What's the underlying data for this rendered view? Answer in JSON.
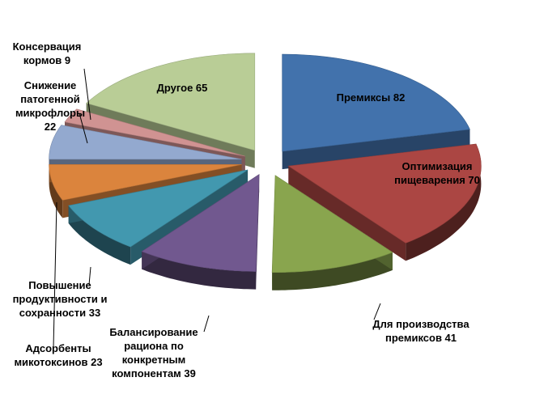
{
  "chart_data": {
    "type": "pie",
    "style": "exploded 3D pie",
    "title": "",
    "slices": [
      {
        "label_lines": [
          "Премиксы 82"
        ],
        "category": "Премиксы",
        "value": 82,
        "color": "#4272ac",
        "label_inside": true
      },
      {
        "label_lines": [
          "Оптимизация",
          "пищеварения 70"
        ],
        "category": "Оптимизация пищеварения",
        "value": 70,
        "color": "#ab4643",
        "label_inside": true
      },
      {
        "label_lines": [
          "Для производства",
          "премиксов  41"
        ],
        "category": "Для производства премиксов",
        "value": 41,
        "color": "#89a54e",
        "label_inside": false
      },
      {
        "label_lines": [
          "Балансирование",
          "рациона по",
          "конкретным",
          "компонентам 39"
        ],
        "category": "Балансирование рациона по конкретным компонентам",
        "value": 39,
        "color": "#71588f",
        "label_inside": false
      },
      {
        "label_lines": [
          "Повышение",
          "продуктивности и",
          "сохранности 33"
        ],
        "category": "Повышение продуктивности и сохранности",
        "value": 33,
        "color": "#4298af",
        "label_inside": false
      },
      {
        "label_lines": [
          "Адсорбенты",
          "микотоксинов 23"
        ],
        "category": "Адсорбенты микотоксинов",
        "value": 23,
        "color": "#db843d",
        "label_inside": false
      },
      {
        "label_lines": [
          "Снижение",
          "патогенной",
          "микрофлоры",
          "22"
        ],
        "category": "Снижение патогенной микрофлоры",
        "value": 22,
        "color": "#93a9cf",
        "label_inside": false
      },
      {
        "label_lines": [
          "Консервация",
          "кормов 9"
        ],
        "category": "Консервация кормов",
        "value": 9,
        "color": "#d09392",
        "label_inside": false
      },
      {
        "label_lines": [
          "Другое 65"
        ],
        "category": "Другое",
        "value": 65,
        "color": "#b9cd96",
        "label_inside": true
      }
    ]
  }
}
